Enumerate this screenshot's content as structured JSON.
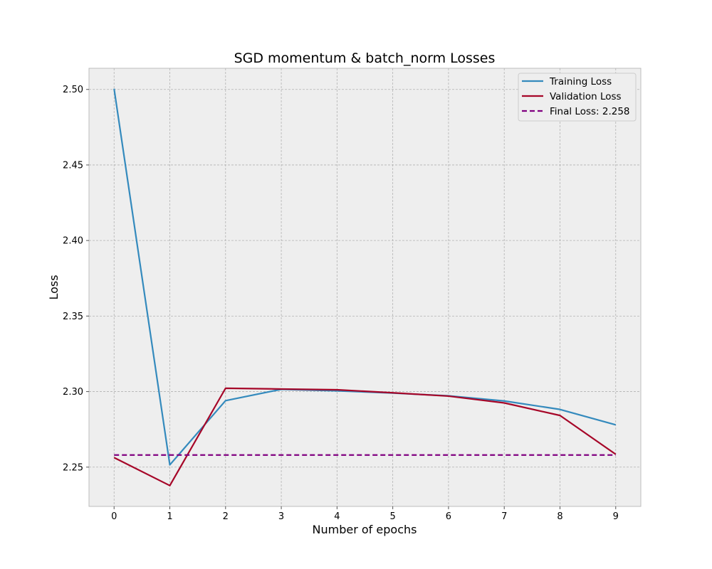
{
  "chart_data": {
    "type": "line",
    "title": "SGD momentum & batch_norm Losses",
    "xlabel": "Number of epochs",
    "ylabel": "Loss",
    "x": [
      0,
      1,
      2,
      3,
      4,
      5,
      6,
      7,
      8,
      9
    ],
    "xlim": [
      -0.45,
      9.45
    ],
    "ylim": [
      2.224,
      2.514
    ],
    "x_ticks": [
      "0",
      "1",
      "2",
      "3",
      "4",
      "5",
      "6",
      "7",
      "8",
      "9"
    ],
    "y_ticks": [
      "2.25",
      "2.30",
      "2.35",
      "2.40",
      "2.45",
      "2.50"
    ],
    "grid": true,
    "legend_position": "top-right",
    "series": [
      {
        "name": "Training Loss",
        "color": "#348ABD",
        "style": "solid",
        "values": [
          2.5005,
          2.2515,
          2.294,
          2.3015,
          2.3005,
          2.299,
          2.2972,
          2.2938,
          2.2882,
          2.278
        ]
      },
      {
        "name": "Validation Loss",
        "color": "#A60628",
        "style": "solid",
        "values": [
          2.2563,
          2.2378,
          2.3022,
          2.3017,
          2.3012,
          2.2992,
          2.297,
          2.2925,
          2.2842,
          2.2585
        ]
      },
      {
        "name": "Final Loss: 2.258",
        "color": "#800080",
        "style": "dashed",
        "values": [
          2.258,
          2.258,
          2.258,
          2.258,
          2.258,
          2.258,
          2.258,
          2.258,
          2.258,
          2.258
        ]
      }
    ]
  }
}
